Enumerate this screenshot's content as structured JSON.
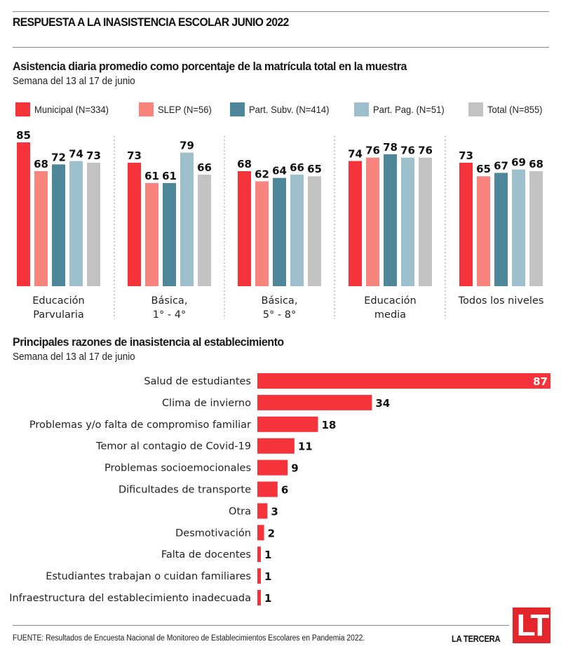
{
  "header": {
    "title": "RESPUESTA A LA INASISTENCIA ESCOLAR JUNIO 2022"
  },
  "colors": {
    "municipal": "#f5333a",
    "slep": "#f7857d",
    "part_subv": "#4f879a",
    "part_pag": "#9ec0cc",
    "total": "#c2c2c2",
    "reasons_bar": "#f5333a",
    "brand": "#e3262b"
  },
  "chart_data": [
    {
      "type": "bar",
      "title": "Asistencia diaria promedio como porcentaje de la matrícula total en la muestra",
      "subtitle": "Semana del 13 al 17 de junio",
      "xlabel": "",
      "ylabel": "",
      "ylim": [
        0,
        85
      ],
      "grid": false,
      "legend_position": "top",
      "categories": [
        [
          "Educación",
          "Parvularia"
        ],
        [
          "Básica,",
          "1° - 4°"
        ],
        [
          "Básica,",
          "5° - 8°"
        ],
        [
          "Educación",
          "media"
        ],
        [
          "Todos los niveles"
        ]
      ],
      "series": [
        {
          "name": "Municipal (N=334)",
          "color_key": "municipal",
          "values": [
            85,
            73,
            68,
            74,
            73
          ]
        },
        {
          "name": "SLEP (N=56)",
          "color_key": "slep",
          "values": [
            68,
            61,
            62,
            76,
            65
          ]
        },
        {
          "name": "Part. Subv. (N=414)",
          "color_key": "part_subv",
          "values": [
            72,
            61,
            64,
            78,
            67
          ]
        },
        {
          "name": "Part. Pag. (N=51)",
          "color_key": "part_pag",
          "values": [
            74,
            79,
            66,
            76,
            69
          ]
        },
        {
          "name": "Total (N=855)",
          "color_key": "total",
          "values": [
            73,
            66,
            65,
            76,
            68
          ]
        }
      ]
    },
    {
      "type": "bar",
      "orientation": "horizontal",
      "title": "Principales razones de inasistencia al establecimiento",
      "subtitle": "Semana del 13 al 17 de junio",
      "xlabel": "",
      "ylabel": "",
      "xlim": [
        0,
        87
      ],
      "grid": false,
      "categories": [
        "Salud de estudiantes",
        "Clima de invierno",
        "Problemas y/o falta de compromiso familiar",
        "Temor al contagio de Covid-19",
        "Problemas socioemocionales",
        "Dificultades de transporte",
        "Otra",
        "Desmotivación",
        "Falta de docentes",
        "Estudiantes trabajan o cuidan familiares",
        "Infraestructura del establecimiento inadecuada"
      ],
      "values": [
        87,
        34,
        18,
        11,
        9,
        6,
        3,
        2,
        1,
        1,
        1
      ]
    }
  ],
  "footer": {
    "source": "FUENTE: Resultados de Encuesta Nacional de Monitoreo de Establecimientos Escolares en Pandemia 2022.",
    "brand": "LA TERCERA",
    "logo": "LT"
  }
}
